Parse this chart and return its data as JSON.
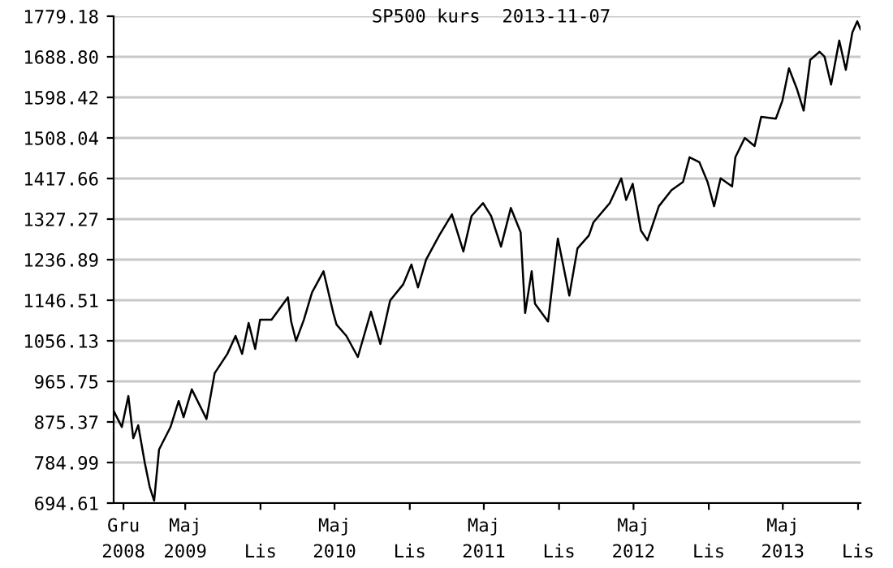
{
  "chart_data": {
    "type": "line",
    "title": "SP500 kurs  2013-11-07",
    "x": [
      "2008-11-07",
      "2008-11-27",
      "2008-12-13",
      "2008-12-25",
      "2009-01-06",
      "2009-01-22",
      "2009-02-03",
      "2009-02-14",
      "2009-02-26",
      "2009-03-26",
      "2009-04-15",
      "2009-04-27",
      "2009-05-17",
      "2009-06-22",
      "2009-07-12",
      "2009-08-12",
      "2009-09-01",
      "2009-09-17",
      "2009-10-03",
      "2009-10-19",
      "2009-10-31",
      "2009-11-28",
      "2009-12-18",
      "2010-01-07",
      "2010-01-15",
      "2010-01-27",
      "2010-02-15",
      "2010-03-07",
      "2010-04-04",
      "2010-04-28",
      "2010-05-06",
      "2010-05-30",
      "2010-06-27",
      "2010-07-29",
      "2010-08-21",
      "2010-09-14",
      "2010-10-16",
      "2010-11-05",
      "2010-11-21",
      "2010-12-11",
      "2011-01-12",
      "2011-02-12",
      "2011-03-12",
      "2011-04-01",
      "2011-04-29",
      "2011-05-19",
      "2011-06-12",
      "2011-07-06",
      "2011-07-30",
      "2011-08-10",
      "2011-08-26",
      "2011-09-03",
      "2011-10-05",
      "2011-10-29",
      "2011-11-26",
      "2011-12-16",
      "2012-01-13",
      "2012-01-24",
      "2012-03-04",
      "2012-04-01",
      "2012-04-13",
      "2012-04-29",
      "2012-05-19",
      "2012-06-04",
      "2012-07-02",
      "2012-08-02",
      "2012-08-30",
      "2012-09-15",
      "2012-10-09",
      "2012-10-29",
      "2012-11-14",
      "2012-11-30",
      "2012-12-28",
      "2013-01-05",
      "2013-01-28",
      "2013-02-21",
      "2013-03-09",
      "2013-04-14",
      "2013-04-30",
      "2013-05-16",
      "2013-06-05",
      "2013-06-21",
      "2013-07-07",
      "2013-07-30",
      "2013-08-11",
      "2013-08-27",
      "2013-09-16",
      "2013-10-02",
      "2013-10-18",
      "2013-10-30",
      "2013-11-07"
    ],
    "series": [
      {
        "color": "#000000",
        "values": [
          900,
          864,
          933,
          839,
          868,
          785,
          731,
          700,
          814,
          864,
          922,
          886,
          948,
          882,
          984,
          1027,
          1067,
          1027,
          1096,
          1038,
          1103,
          1103,
          1128,
          1153,
          1099,
          1056,
          1103,
          1164,
          1211,
          1118,
          1092,
          1067,
          1020,
          1121,
          1049,
          1146,
          1182,
          1226,
          1175,
          1237,
          1291,
          1338,
          1255,
          1334,
          1363,
          1334,
          1266,
          1352,
          1298,
          1118,
          1211,
          1139,
          1099,
          1284,
          1157,
          1262,
          1291,
          1320,
          1363,
          1418,
          1370,
          1406,
          1302,
          1280,
          1356,
          1392,
          1410,
          1465,
          1454,
          1410,
          1356,
          1418,
          1400,
          1465,
          1508,
          1490,
          1555,
          1551,
          1591,
          1663,
          1616,
          1569,
          1682,
          1700,
          1689,
          1627,
          1725,
          1660,
          1743,
          1768,
          1750
        ]
      }
    ],
    "xlim": [
      "2008-11-07",
      "2013-11-07"
    ],
    "xticks": [
      {
        "value": "2008-12-01",
        "label": "Gru\n2008"
      },
      {
        "value": "2009-05-01",
        "label": "Maj\n2009"
      },
      {
        "value": "2009-11-01",
        "label": "\nLis"
      },
      {
        "value": "2010-05-01",
        "label": "Maj\n2010"
      },
      {
        "value": "2010-11-01",
        "label": "\nLis"
      },
      {
        "value": "2011-05-01",
        "label": "Maj\n2011"
      },
      {
        "value": "2011-11-01",
        "label": "\nLis"
      },
      {
        "value": "2012-05-01",
        "label": "Maj\n2012"
      },
      {
        "value": "2012-11-01",
        "label": "\nLis"
      },
      {
        "value": "2013-05-01",
        "label": "Maj\n2013"
      },
      {
        "value": "2013-11-01",
        "label": "\nLis"
      }
    ],
    "ylim": [
      694.61,
      1779.18
    ],
    "yticks": [
      694.61,
      784.99,
      875.37,
      965.75,
      1056.13,
      1146.51,
      1236.89,
      1327.27,
      1417.66,
      1508.04,
      1598.42,
      {
        "value": 1688.8,
        "label": "1688.80"
      },
      1779.18
    ],
    "grid": "y",
    "legend": false
  }
}
